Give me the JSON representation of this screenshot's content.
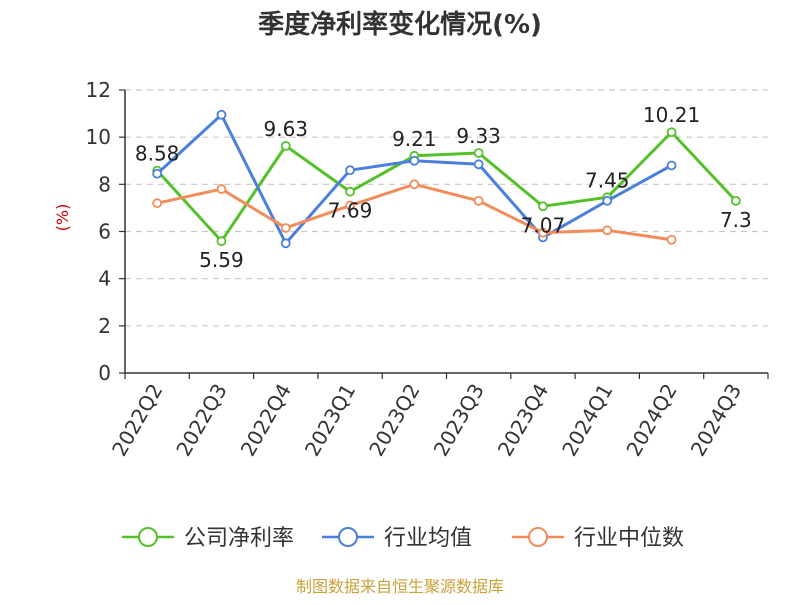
{
  "title": "季度净利率变化情况(%)",
  "source": "制图数据来自恒生聚源数据库",
  "chart_data": {
    "type": "line",
    "title": "季度净利率变化情况(%)",
    "xlabel": "",
    "ylabel": "(%)",
    "categories": [
      "2022Q2",
      "2022Q3",
      "2022Q4",
      "2023Q1",
      "2023Q2",
      "2023Q3",
      "2023Q4",
      "2024Q1",
      "2024Q2",
      "2024Q3"
    ],
    "ylim": [
      0,
      12
    ],
    "yticks": [
      0,
      2,
      4,
      6,
      8,
      10,
      12
    ],
    "ytick_labels": [
      "0",
      "2",
      "4",
      "6",
      "8",
      "10",
      "12"
    ],
    "grid": true,
    "legend_position": "bottom",
    "series": [
      {
        "name": "公司净利率",
        "color": "#55c12a",
        "values": [
          8.58,
          5.59,
          9.63,
          7.69,
          9.21,
          9.33,
          7.07,
          7.45,
          10.21,
          7.3
        ],
        "labels": [
          "8.58",
          "5.59",
          "9.63",
          "7.69",
          "9.21",
          "9.33",
          "7.07",
          "7.45",
          "10.21",
          "7.3"
        ]
      },
      {
        "name": "行业均值",
        "color": "#4a7fdc",
        "values": [
          8.45,
          10.95,
          5.5,
          8.6,
          9.0,
          8.85,
          5.75,
          7.3,
          8.8,
          null
        ]
      },
      {
        "name": "行业中位数",
        "color": "#f28c5b",
        "values": [
          7.2,
          7.8,
          6.15,
          7.1,
          8.0,
          7.3,
          5.95,
          6.05,
          5.65,
          null
        ]
      }
    ]
  }
}
